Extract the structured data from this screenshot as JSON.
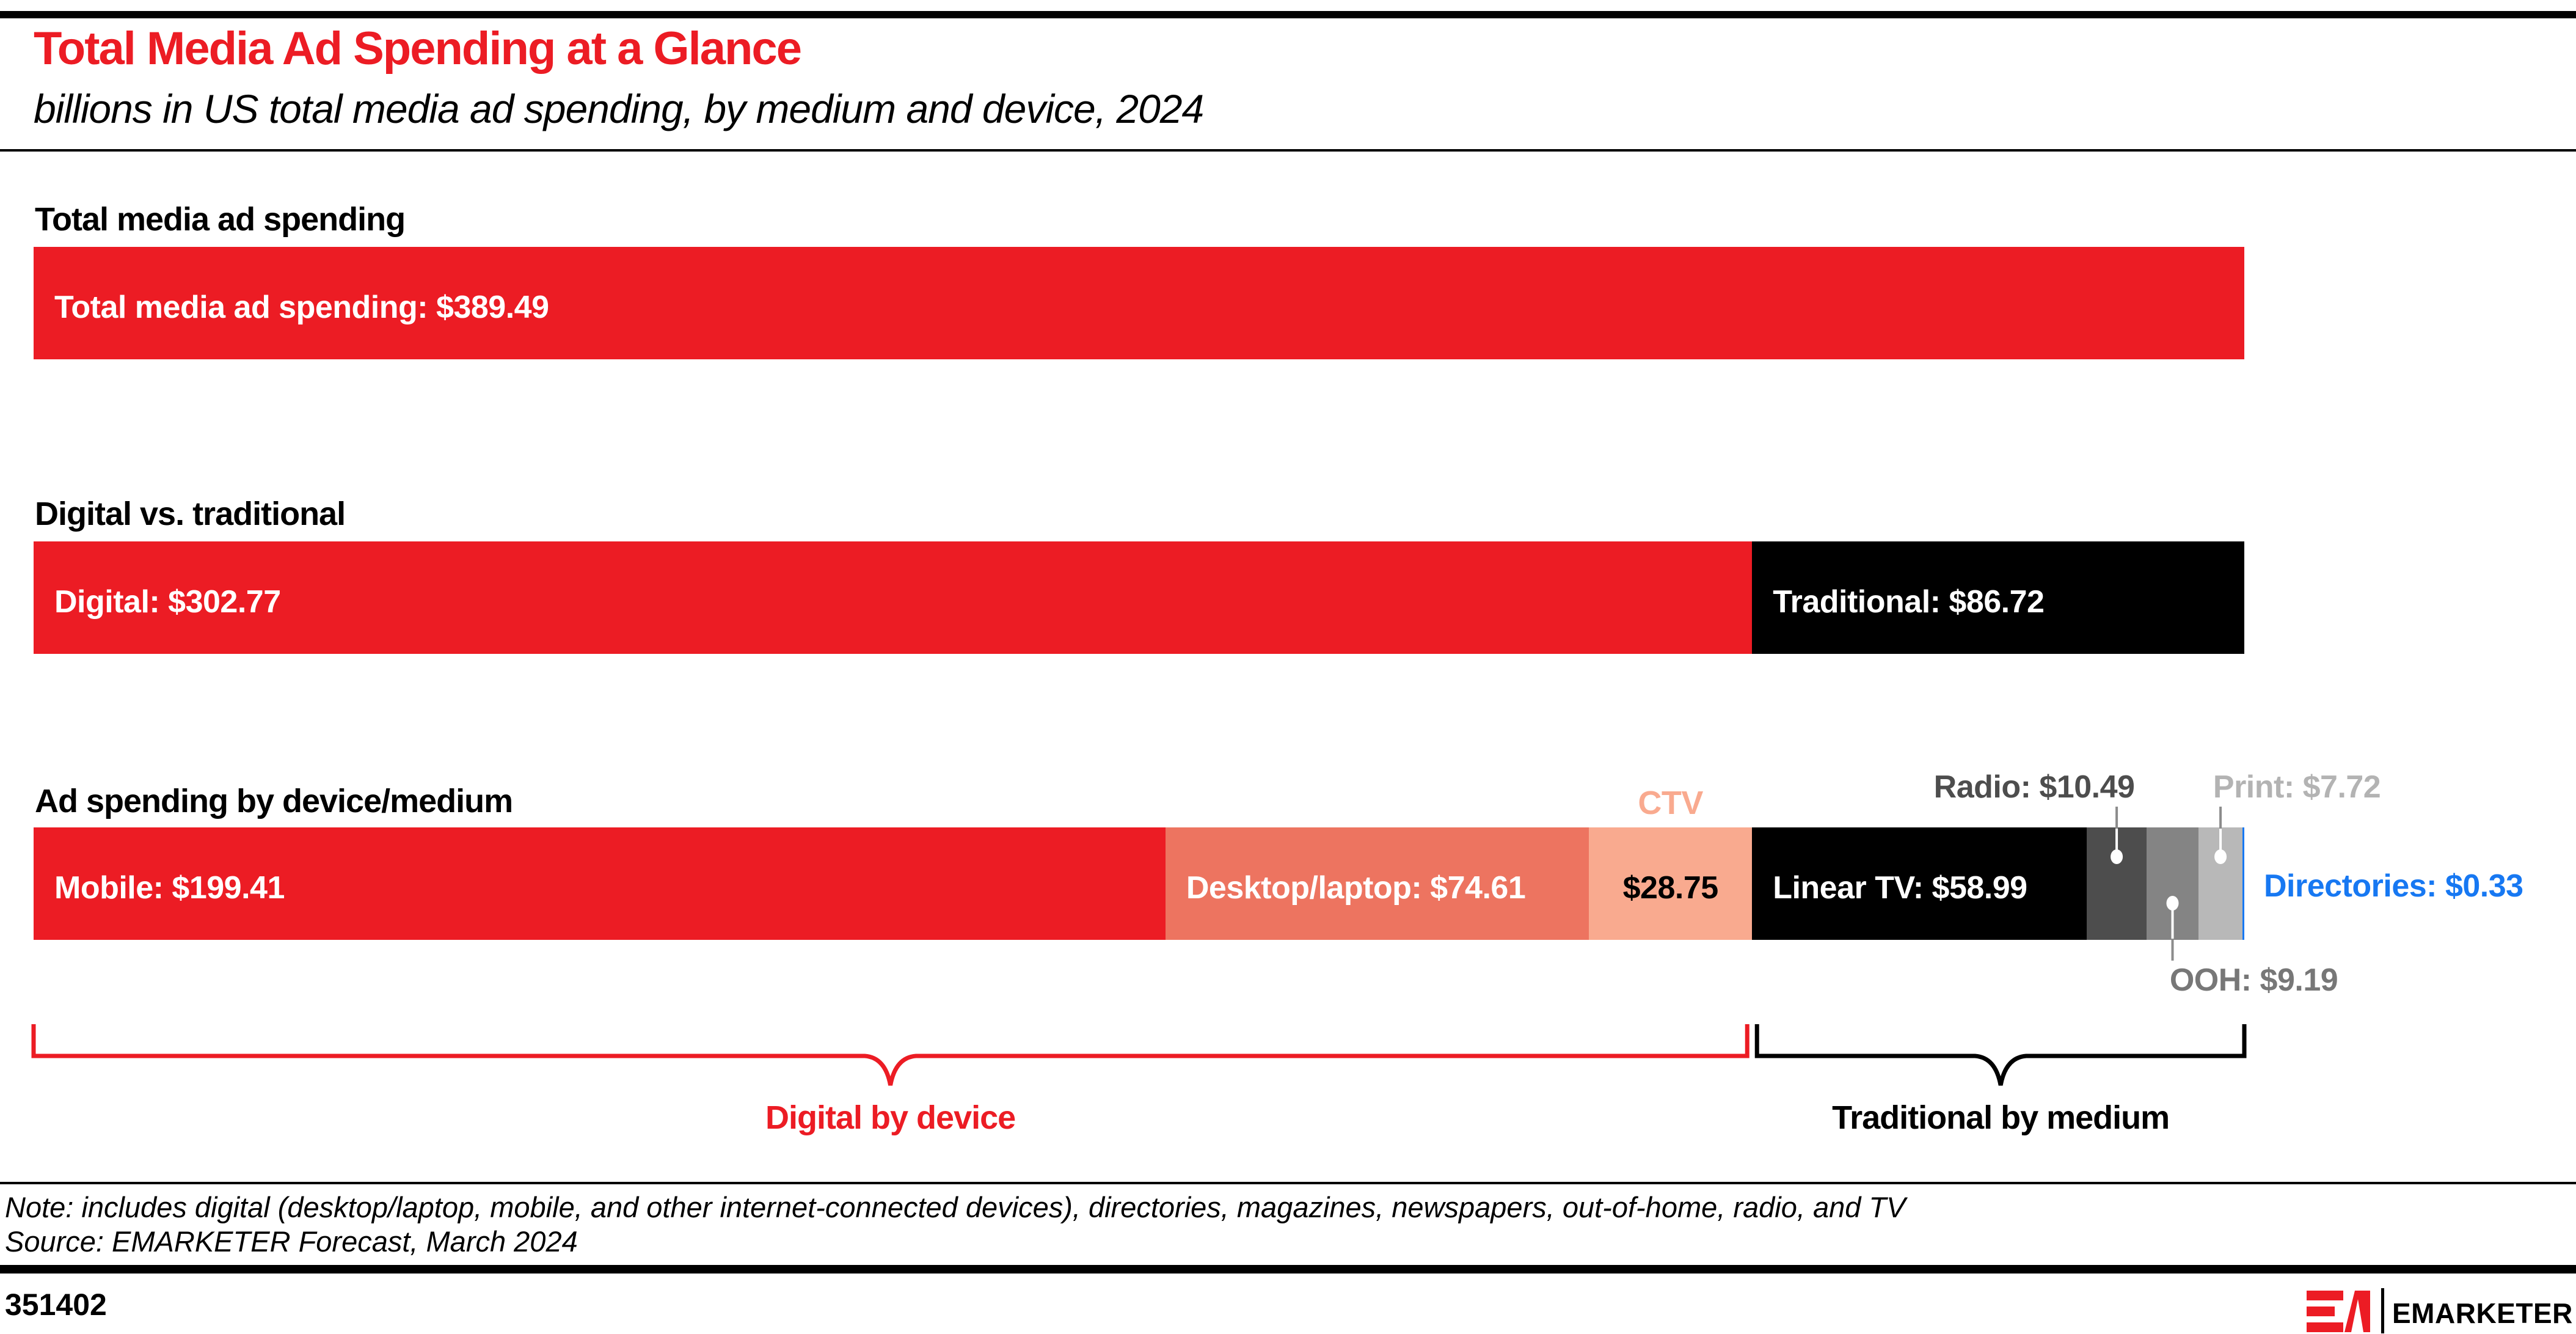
{
  "header": {
    "title": "Total Media Ad Spending at a Glance",
    "subtitle": "billions in US total media ad spending, by medium and device, 2024",
    "title_color": "#ec1c24"
  },
  "chart_data": {
    "type": "bar",
    "unit": "US$ billions",
    "axis_total": 389.49,
    "charts": [
      {
        "label": "Total media ad spending",
        "segments": [
          {
            "name": "Total media ad spending",
            "value": 389.49,
            "display": "Total media ad spending: $389.49",
            "color": "#ec1c24",
            "text_color": "#ffffff",
            "label_position": "inside"
          }
        ]
      },
      {
        "label": "Digital vs. traditional",
        "segments": [
          {
            "name": "Digital",
            "value": 302.77,
            "display": "Digital: $302.77",
            "color": "#ec1c24",
            "text_color": "#ffffff",
            "label_position": "inside"
          },
          {
            "name": "Traditional",
            "value": 86.72,
            "display": "Traditional: $86.72",
            "color": "#000000",
            "text_color": "#ffffff",
            "label_position": "inside"
          }
        ]
      },
      {
        "label": "Ad spending by device/medium",
        "segments": [
          {
            "name": "Mobile",
            "value": 199.41,
            "display": "Mobile: $199.41",
            "color": "#ec1c24",
            "text_color": "#ffffff",
            "label_position": "inside"
          },
          {
            "name": "Desktop/laptop",
            "value": 74.61,
            "display": "Desktop/laptop: $74.61",
            "color": "#ed7460",
            "text_color": "#ffffff",
            "label_position": "inside"
          },
          {
            "name": "CTV",
            "value": 28.75,
            "display": "$28.75",
            "top_label": "CTV",
            "color": "#f9aa8f",
            "text_color": "#000000",
            "label_position": "inside-center"
          },
          {
            "name": "Linear TV",
            "value": 58.99,
            "display": "Linear TV: $58.99",
            "color": "#000000",
            "text_color": "#ffffff",
            "label_position": "inside"
          },
          {
            "name": "Radio",
            "value": 10.49,
            "display": "Radio: $10.49",
            "color": "#4d4d4d",
            "label_color": "#4d4d4d",
            "label_position": "above"
          },
          {
            "name": "OOH",
            "value": 9.19,
            "display": "OOH: $9.19",
            "color": "#848484",
            "label_color": "#777777",
            "label_position": "below"
          },
          {
            "name": "Print",
            "value": 7.72,
            "display": "Print: $7.72",
            "color": "#b8b8b8",
            "label_color": "#b3b3b3",
            "label_position": "above"
          },
          {
            "name": "Directories",
            "value": 0.33,
            "display": "Directories: $0.33",
            "color": "#1778f2",
            "label_color": "#1778f2",
            "label_position": "right"
          }
        ]
      }
    ],
    "braces": [
      {
        "label": "Digital by device",
        "color": "#ec1c24",
        "segments": [
          "Mobile",
          "Desktop/laptop",
          "CTV"
        ]
      },
      {
        "label": "Traditional by medium",
        "color": "#000000",
        "segments": [
          "Linear TV",
          "Radio",
          "OOH",
          "Print",
          "Directories"
        ]
      }
    ]
  },
  "footer": {
    "note": "Note: includes digital (desktop/laptop, mobile, and other internet-connected devices), directories, magazines, newspapers, out-of-home, radio, and TV",
    "source": "Source: EMARKETER Forecast, March 2024",
    "chart_id": "351402",
    "logo": {
      "monogram": "EM",
      "wordmark": "EMARKETER",
      "color": "#ec1c24"
    }
  }
}
